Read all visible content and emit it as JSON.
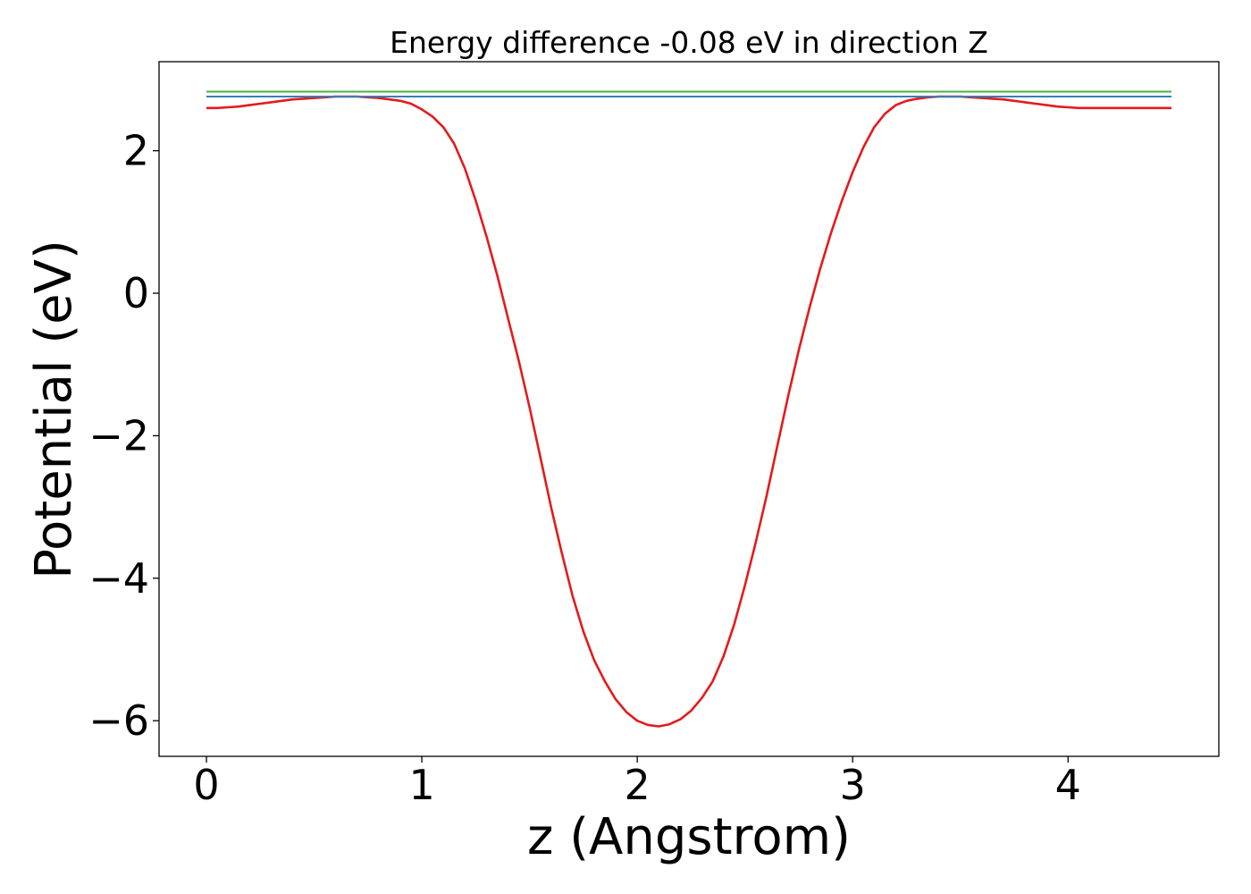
{
  "chart_data": {
    "type": "line",
    "title": "Energy difference -0.08 eV in direction Z",
    "xlabel": "z (Angstrom)",
    "ylabel": "Potential (eV)",
    "xlim": [
      -0.22,
      4.7
    ],
    "ylim": [
      -6.5,
      3.25
    ],
    "xticks": [
      0,
      1,
      2,
      3,
      4
    ],
    "yticks": [
      -6,
      -4,
      -2,
      0,
      2
    ],
    "xtick_labels": [
      "0",
      "1",
      "2",
      "3",
      "4"
    ],
    "ytick_labels": [
      "−6",
      "−4",
      "−2",
      "0",
      "2"
    ],
    "grid": false,
    "colors": {
      "potential": "#e41a1c",
      "level_green": "#4daf4a",
      "level_blue": "#377eb8"
    },
    "series": [
      {
        "kind": "curve",
        "color_key": "potential",
        "x": [
          0.0,
          0.05,
          0.1,
          0.15,
          0.2,
          0.25,
          0.3,
          0.35,
          0.4,
          0.45,
          0.5,
          0.55,
          0.6,
          0.65,
          0.7,
          0.75,
          0.8,
          0.85,
          0.9,
          0.95,
          1.0,
          1.05,
          1.1,
          1.15,
          1.2,
          1.25,
          1.3,
          1.35,
          1.4,
          1.45,
          1.5,
          1.55,
          1.6,
          1.65,
          1.7,
          1.75,
          1.8,
          1.85,
          1.9,
          1.95,
          2.0,
          2.05,
          2.1,
          2.15,
          2.2,
          2.25,
          2.3,
          2.35,
          2.4,
          2.45,
          2.5,
          2.55,
          2.6,
          2.65,
          2.7,
          2.75,
          2.8,
          2.85,
          2.9,
          2.95,
          3.0,
          3.05,
          3.1,
          3.15,
          3.2,
          3.25,
          3.3,
          3.35,
          3.4,
          3.45,
          3.5,
          3.55,
          3.6,
          3.65,
          3.7,
          3.75,
          3.8,
          3.85,
          3.9,
          3.95,
          4.0,
          4.05,
          4.1,
          4.15,
          4.2,
          4.25,
          4.3,
          4.35,
          4.4,
          4.45,
          4.48
        ],
        "y": [
          2.6,
          2.6,
          2.61,
          2.62,
          2.64,
          2.66,
          2.68,
          2.7,
          2.72,
          2.73,
          2.74,
          2.75,
          2.76,
          2.76,
          2.76,
          2.75,
          2.74,
          2.72,
          2.7,
          2.66,
          2.58,
          2.48,
          2.33,
          2.1,
          1.75,
          1.3,
          0.8,
          0.25,
          -0.35,
          -0.95,
          -1.6,
          -2.3,
          -3.0,
          -3.65,
          -4.25,
          -4.75,
          -5.15,
          -5.45,
          -5.7,
          -5.88,
          -6.0,
          -6.06,
          -6.08,
          -6.05,
          -5.98,
          -5.86,
          -5.68,
          -5.45,
          -5.1,
          -4.65,
          -4.1,
          -3.5,
          -2.85,
          -2.15,
          -1.45,
          -0.8,
          -0.2,
          0.35,
          0.85,
          1.3,
          1.7,
          2.05,
          2.33,
          2.52,
          2.64,
          2.7,
          2.73,
          2.75,
          2.76,
          2.76,
          2.76,
          2.75,
          2.74,
          2.73,
          2.72,
          2.7,
          2.68,
          2.66,
          2.64,
          2.62,
          2.61,
          2.6,
          2.6,
          2.6,
          2.6,
          2.6,
          2.6,
          2.6,
          2.6,
          2.6,
          2.6
        ]
      },
      {
        "kind": "level",
        "color_key": "level_green",
        "x": [
          0.0,
          4.48
        ],
        "y": [
          2.83,
          2.83
        ]
      },
      {
        "kind": "level",
        "color_key": "level_blue",
        "x": [
          0.0,
          4.48
        ],
        "y": [
          2.76,
          2.76
        ]
      }
    ]
  }
}
